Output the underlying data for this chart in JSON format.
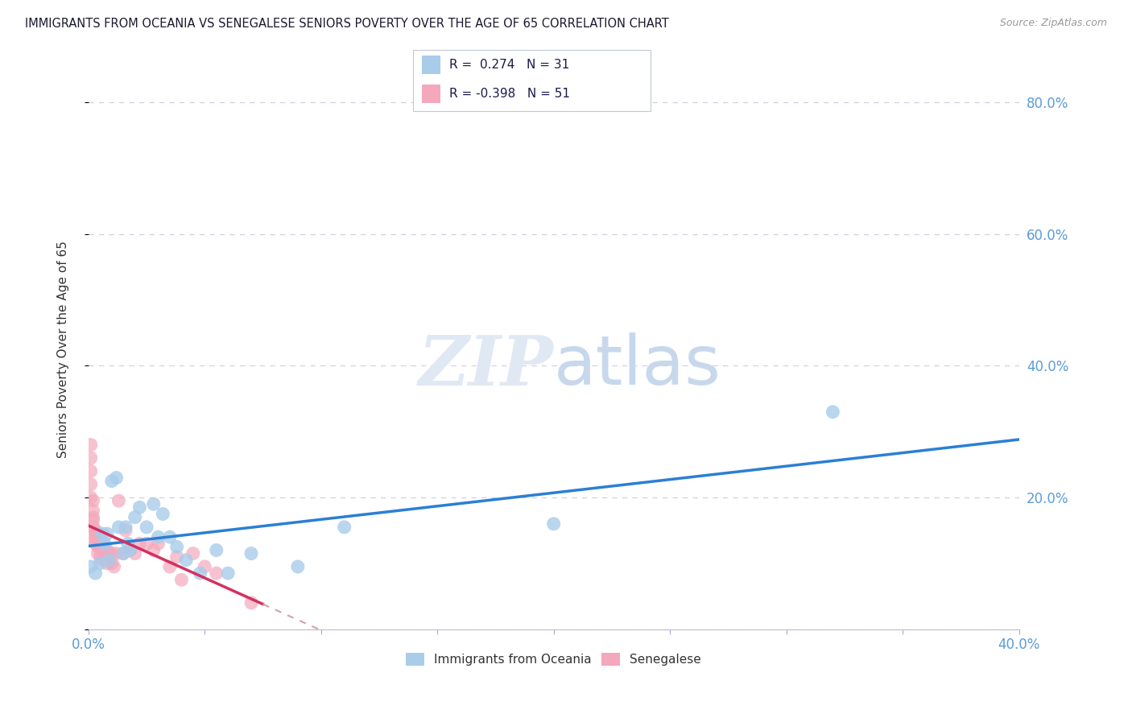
{
  "title": "IMMIGRANTS FROM OCEANIA VS SENEGALESE SENIORS POVERTY OVER THE AGE OF 65 CORRELATION CHART",
  "source": "Source: ZipAtlas.com",
  "ylabel": "Seniors Poverty Over the Age of 65",
  "x_min": 0.0,
  "x_max": 0.4,
  "y_min": 0.0,
  "y_max": 0.85,
  "right_y_ticks": [
    0.2,
    0.4,
    0.6,
    0.8
  ],
  "right_y_tick_labels": [
    "20.0%",
    "40.0%",
    "60.0%",
    "80.0%"
  ],
  "blue_R": 0.274,
  "blue_N": 31,
  "pink_R": -0.398,
  "pink_N": 51,
  "blue_color": "#A8CCEA",
  "pink_color": "#F4A8BC",
  "line_blue": "#2B7FD4",
  "line_pink": "#D43060",
  "line_pink_dashed": "#D4A0B0",
  "grid_color": "#D0D0E0",
  "background_color": "#FFFFFF",
  "legend_label_blue": "Immigrants from Oceania",
  "legend_label_pink": "Senegalese",
  "blue_scatter_x": [
    0.001,
    0.003,
    0.005,
    0.006,
    0.007,
    0.008,
    0.009,
    0.01,
    0.012,
    0.013,
    0.015,
    0.016,
    0.017,
    0.018,
    0.02,
    0.022,
    0.025,
    0.028,
    0.03,
    0.032,
    0.035,
    0.038,
    0.042,
    0.048,
    0.055,
    0.06,
    0.07,
    0.09,
    0.11,
    0.2,
    0.32
  ],
  "blue_scatter_y": [
    0.095,
    0.085,
    0.1,
    0.145,
    0.13,
    0.145,
    0.105,
    0.225,
    0.23,
    0.155,
    0.115,
    0.155,
    0.13,
    0.12,
    0.17,
    0.185,
    0.155,
    0.19,
    0.14,
    0.175,
    0.14,
    0.125,
    0.105,
    0.085,
    0.12,
    0.085,
    0.115,
    0.095,
    0.155,
    0.16,
    0.33
  ],
  "pink_scatter_x": [
    0.001,
    0.001,
    0.001,
    0.001,
    0.001,
    0.002,
    0.002,
    0.002,
    0.002,
    0.002,
    0.003,
    0.003,
    0.003,
    0.003,
    0.003,
    0.004,
    0.004,
    0.004,
    0.004,
    0.005,
    0.005,
    0.005,
    0.006,
    0.006,
    0.006,
    0.007,
    0.007,
    0.008,
    0.008,
    0.008,
    0.009,
    0.01,
    0.01,
    0.011,
    0.012,
    0.013,
    0.015,
    0.016,
    0.018,
    0.02,
    0.022,
    0.025,
    0.028,
    0.03,
    0.035,
    0.038,
    0.04,
    0.045,
    0.05,
    0.055,
    0.07
  ],
  "pink_scatter_y": [
    0.28,
    0.26,
    0.24,
    0.22,
    0.2,
    0.195,
    0.18,
    0.17,
    0.165,
    0.155,
    0.15,
    0.145,
    0.14,
    0.135,
    0.13,
    0.145,
    0.13,
    0.125,
    0.115,
    0.135,
    0.125,
    0.11,
    0.13,
    0.125,
    0.105,
    0.12,
    0.11,
    0.12,
    0.105,
    0.1,
    0.115,
    0.115,
    0.1,
    0.095,
    0.115,
    0.195,
    0.115,
    0.15,
    0.12,
    0.115,
    0.13,
    0.13,
    0.12,
    0.13,
    0.095,
    0.11,
    0.075,
    0.115,
    0.095,
    0.085,
    0.04
  ]
}
